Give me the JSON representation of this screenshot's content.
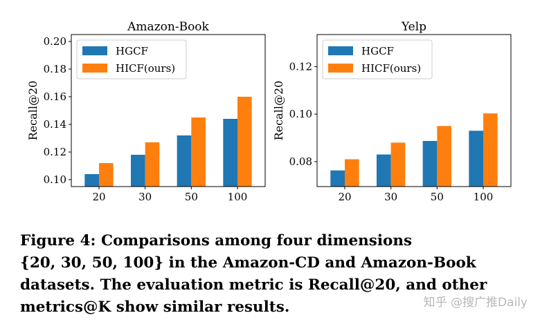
{
  "chart_data": [
    {
      "type": "bar",
      "title": "Amazon-Book",
      "xlabel": "",
      "ylabel": "Recall@20",
      "categories": [
        "20",
        "30",
        "50",
        "100"
      ],
      "series": [
        {
          "name": "HGCF",
          "values": [
            0.104,
            0.118,
            0.132,
            0.144
          ]
        },
        {
          "name": "HICF(ours)",
          "values": [
            0.112,
            0.127,
            0.145,
            0.16
          ]
        }
      ],
      "ylim": [
        0.095,
        0.205
      ],
      "yticks": [
        "0.10",
        "0.12",
        "0.14",
        "0.16",
        "0.18",
        "0.20"
      ],
      "ytick_values": [
        0.1,
        0.12,
        0.14,
        0.16,
        0.18,
        0.2
      ],
      "legend_position": "top-left",
      "grid": false
    },
    {
      "type": "bar",
      "title": "Yelp",
      "xlabel": "",
      "ylabel": "Recall@20",
      "categories": [
        "20",
        "30",
        "50",
        "100"
      ],
      "series": [
        {
          "name": "HGCF",
          "values": [
            0.0763,
            0.083,
            0.0887,
            0.093
          ]
        },
        {
          "name": "HICF(ours)",
          "values": [
            0.081,
            0.088,
            0.095,
            0.1003
          ]
        }
      ],
      "ylim": [
        0.0695,
        0.1335
      ],
      "yticks": [
        "0.08",
        "0.10",
        "0.12"
      ],
      "ytick_values": [
        0.08,
        0.1,
        0.12
      ],
      "legend_position": "top-left",
      "grid": false
    }
  ],
  "colors": {
    "series": [
      "#1f77b4",
      "#ff7f0e"
    ]
  },
  "caption": {
    "line1": "Figure 4: Comparisons among four dimensions",
    "line2": "{20, 30, 50, 100} in the Amazon-CD and Amazon-Book",
    "line3": "datasets. The evaluation metric is Recall@20, and other",
    "line4": "metrics@K show similar results."
  },
  "watermark": "知乎 @搜广推Daily"
}
